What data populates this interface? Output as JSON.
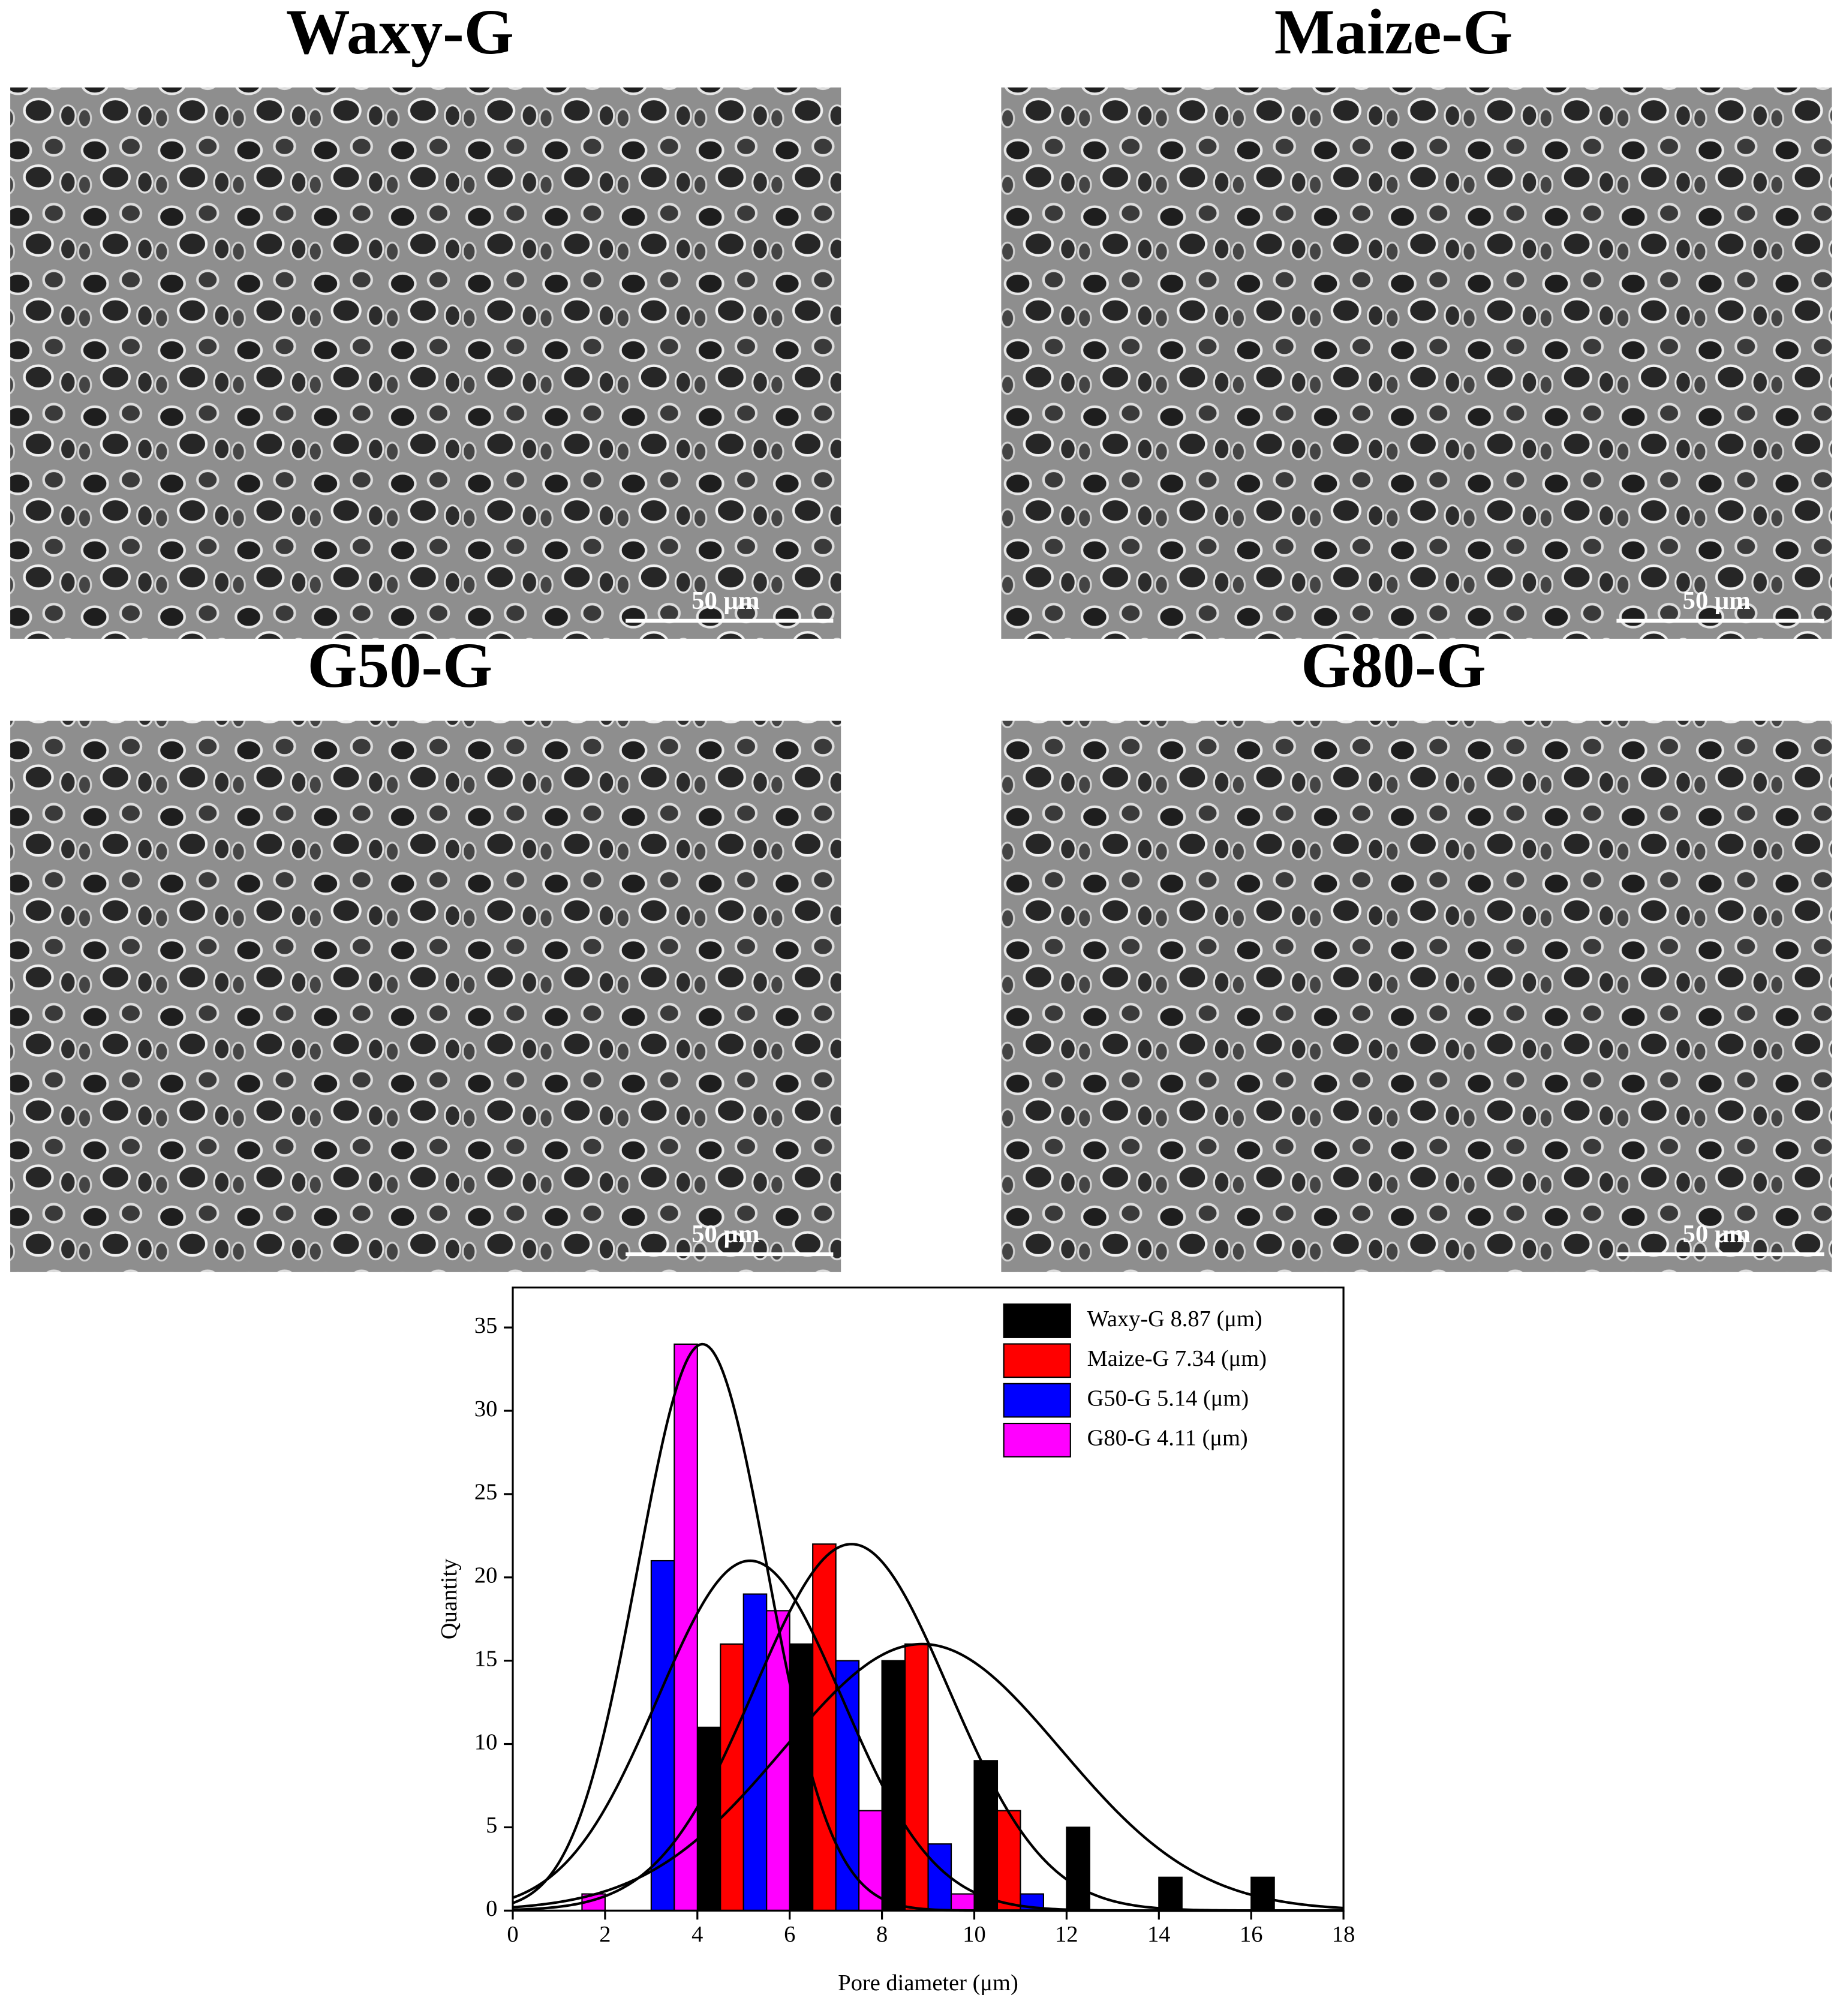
{
  "panels": [
    {
      "title": "Waxy-G",
      "scale_bar": "50 μm"
    },
    {
      "title": "Maize-G",
      "scale_bar": "50 μm"
    },
    {
      "title": "G50-G",
      "scale_bar": "50 μm"
    },
    {
      "title": "G80-G",
      "scale_bar": "50 μm"
    }
  ],
  "chart_data": {
    "type": "bar",
    "x_label": "Pore diameter (μm)",
    "y_label": "Quantity",
    "xlim": [
      0,
      18
    ],
    "ylim": [
      0,
      37.4
    ],
    "xticks": [
      0,
      2,
      4,
      6,
      8,
      10,
      12,
      14,
      16,
      18
    ],
    "yticks": [
      0,
      5,
      10,
      15,
      20,
      25,
      30,
      35
    ],
    "bar_width": 0.5,
    "legend": "upper-right",
    "series": [
      {
        "name": "Waxy-G 8.87 (μm)",
        "color": "#000000",
        "x": [
          4,
          6,
          8,
          10,
          12,
          14,
          16
        ],
        "values": [
          11,
          16,
          15,
          9,
          5,
          2,
          2
        ],
        "fit": {
          "center": 8.87,
          "peak": 16,
          "sd": 3.0
        }
      },
      {
        "name": "Maize-G 7.34 (μm)",
        "color": "#ff0000",
        "x": [
          4.5,
          6.5,
          8.5,
          10.5
        ],
        "values": [
          16,
          22,
          16,
          6
        ],
        "fit": {
          "center": 7.34,
          "peak": 22,
          "sd": 2.1
        }
      },
      {
        "name": "G50-G 5.14 (μm)",
        "color": "#0000ff",
        "x": [
          3,
          5,
          7,
          9,
          11
        ],
        "values": [
          21,
          19,
          15,
          4,
          1
        ],
        "fit": {
          "center": 5.14,
          "peak": 21,
          "sd": 2.0
        }
      },
      {
        "name": "G80-G 4.11 (μm)",
        "color": "#ff00ff",
        "x": [
          1.5,
          3.5,
          5.5,
          7.5,
          9.5
        ],
        "values": [
          1,
          34,
          18,
          6,
          1
        ],
        "fit": {
          "center": 4.11,
          "peak": 34,
          "sd": 1.4
        }
      }
    ]
  }
}
